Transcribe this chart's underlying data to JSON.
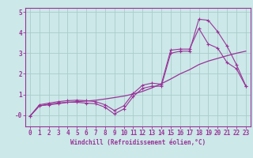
{
  "xlabel": "Windchill (Refroidissement éolien,°C)",
  "bg_color": "#cce8e8",
  "grid_color": "#aacccc",
  "line_color": "#993399",
  "xlim": [
    -0.5,
    23.5
  ],
  "ylim": [
    -0.55,
    5.2
  ],
  "yticks": [
    0,
    1,
    2,
    3,
    4,
    5
  ],
  "ytick_labels": [
    "-0",
    "1",
    "2",
    "3",
    "4",
    "5"
  ],
  "xticks": [
    0,
    1,
    2,
    3,
    4,
    5,
    6,
    7,
    8,
    9,
    10,
    11,
    12,
    13,
    14,
    15,
    16,
    17,
    18,
    19,
    20,
    21,
    22,
    23
  ],
  "series1_x": [
    0,
    1,
    2,
    3,
    4,
    5,
    6,
    7,
    8,
    9,
    10,
    11,
    12,
    13,
    14,
    15,
    16,
    17,
    18,
    19,
    20,
    21,
    22,
    23
  ],
  "series1_y": [
    -0.05,
    0.45,
    0.52,
    0.58,
    0.62,
    0.65,
    0.68,
    0.72,
    0.78,
    0.85,
    0.92,
    1.02,
    1.15,
    1.32,
    1.52,
    1.75,
    2.0,
    2.2,
    2.45,
    2.62,
    2.75,
    2.88,
    3.0,
    3.1
  ],
  "series2_x": [
    0,
    1,
    2,
    3,
    4,
    5,
    6,
    7,
    8,
    9,
    10,
    11,
    12,
    13,
    14,
    15,
    16,
    17,
    18,
    19,
    20,
    21,
    22,
    23
  ],
  "series2_y": [
    -0.05,
    0.5,
    0.58,
    0.65,
    0.7,
    0.72,
    0.7,
    0.65,
    0.5,
    0.22,
    0.45,
    1.05,
    1.45,
    1.55,
    1.5,
    3.15,
    3.2,
    3.2,
    4.2,
    3.45,
    3.25,
    2.55,
    2.25,
    1.4
  ],
  "series3_x": [
    0,
    1,
    2,
    3,
    4,
    5,
    6,
    7,
    8,
    9,
    10,
    11,
    12,
    13,
    14,
    15,
    16,
    17,
    18,
    19,
    20,
    21,
    22,
    23
  ],
  "series3_y": [
    -0.05,
    0.45,
    0.5,
    0.55,
    0.62,
    0.62,
    0.58,
    0.55,
    0.38,
    0.05,
    0.3,
    0.9,
    1.3,
    1.4,
    1.4,
    3.0,
    3.1,
    3.1,
    4.65,
    4.6,
    4.05,
    3.35,
    2.45,
    1.42
  ]
}
